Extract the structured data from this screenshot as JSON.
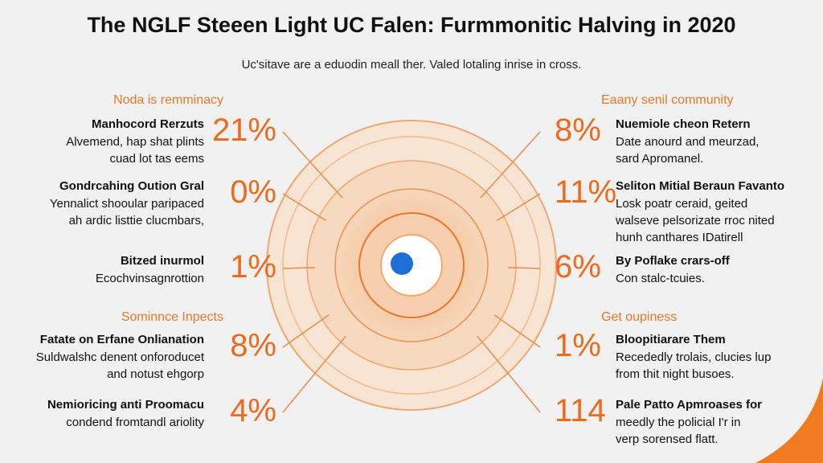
{
  "header": {
    "title": "The NGLF Steeen Light UC Falen: Furmmonitic Halving in 2020",
    "subtitle": "Uc'sitave are a eduodin meall ther. Valed lotaling inrise in cross."
  },
  "left": [
    {
      "heading": "Noda is remminacy",
      "items": [
        {
          "title": "Manhocord Rerzuts",
          "lines": [
            "Alvemend, hap shat plints",
            "cuad lot tas eems"
          ],
          "stat": "21%"
        },
        {
          "title": "Gondrcahing Oution Gral",
          "lines": [
            "Yennalict shooular paripaced",
            "ah ardic listtie clucmbars,"
          ],
          "stat": "0%"
        },
        {
          "title": "Bitzed inurmol",
          "lines": [
            "Ecochvinsagnrottion"
          ],
          "stat": "1%"
        }
      ]
    },
    {
      "heading": "Sominnce Inpects",
      "items": [
        {
          "title": "Fatate on Erfane Onlianation",
          "lines": [
            "Suldwalshc denent onforoducet",
            "and notust ehgorp"
          ],
          "stat": "8%"
        },
        {
          "title": "Nemioricing anti Proomacu",
          "lines": [
            "condend fromtandl ariolity"
          ],
          "stat": "4%"
        }
      ]
    }
  ],
  "right": [
    {
      "heading": "Eaany senil community",
      "items": [
        {
          "title": "Nuemiole cheon Retern",
          "lines": [
            "Date anourd and meurzad,",
            "sard Apromanel."
          ],
          "stat": "8%"
        },
        {
          "title": "Seliton Mitial Beraun Favanto",
          "lines": [
            "Losk poatr ceraid, geited",
            "walseve pelsorizate rroc nited",
            "hunh canthares IDatirell"
          ],
          "stat": "11%"
        },
        {
          "title": "By Poflake crars-off",
          "lines": [
            "Con stalc-tcuies."
          ],
          "stat": "6%"
        }
      ]
    },
    {
      "heading": "Get oupiness",
      "items": [
        {
          "title": "Bloopitiarare Them",
          "lines": [
            "Recededly trolais, clucies lup",
            "from thit night busoes."
          ],
          "stat": "1%"
        },
        {
          "title": "Pale Patto Apmroases for",
          "lines": [
            "meedly the policial I'r in",
            "verp sorensed flatt."
          ],
          "stat": "114"
        }
      ]
    }
  ]
}
